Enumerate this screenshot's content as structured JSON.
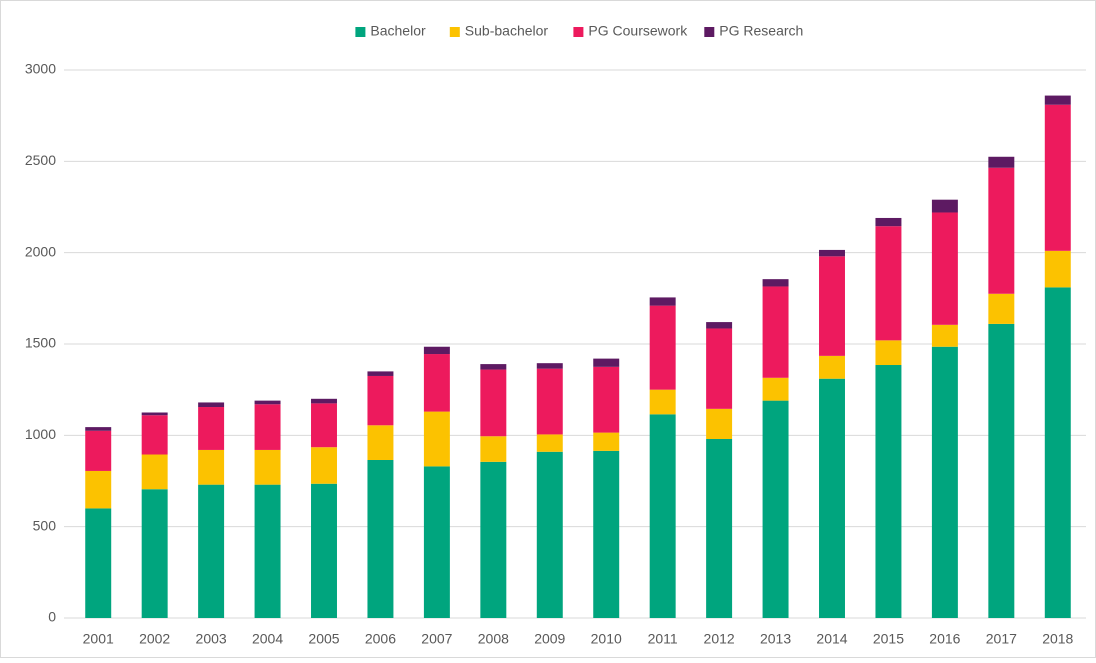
{
  "chart_data": {
    "type": "stacked_bar",
    "categories": [
      "2001",
      "2002",
      "2003",
      "2004",
      "2005",
      "2006",
      "2007",
      "2008",
      "2009",
      "2010",
      "2011",
      "2012",
      "2013",
      "2014",
      "2015",
      "2016",
      "2017",
      "2018"
    ],
    "series": [
      {
        "name": "Bachelor",
        "color": "#00a57e",
        "values": [
          600,
          705,
          730,
          730,
          735,
          865,
          830,
          855,
          910,
          915,
          1115,
          980,
          1190,
          1310,
          1385,
          1485,
          1610,
          1810
        ]
      },
      {
        "name": "Sub-bachelor",
        "color": "#fcc200",
        "values": [
          205,
          190,
          190,
          190,
          200,
          190,
          300,
          140,
          95,
          100,
          135,
          165,
          125,
          125,
          135,
          120,
          165,
          200
        ]
      },
      {
        "name": "PG Coursework",
        "color": "#ed1a5d",
        "values": [
          220,
          215,
          235,
          250,
          240,
          270,
          315,
          365,
          360,
          360,
          460,
          440,
          500,
          545,
          625,
          615,
          690,
          800
        ]
      },
      {
        "name": "PG Research",
        "color": "#5d1a62",
        "values": [
          20,
          15,
          25,
          20,
          25,
          25,
          40,
          30,
          30,
          45,
          45,
          35,
          40,
          35,
          45,
          70,
          60,
          50
        ]
      }
    ],
    "ylim": [
      0,
      3000
    ],
    "yticks": [
      0,
      500,
      1000,
      1500,
      2000,
      2500,
      3000
    ],
    "grid": true,
    "legend": "top"
  }
}
